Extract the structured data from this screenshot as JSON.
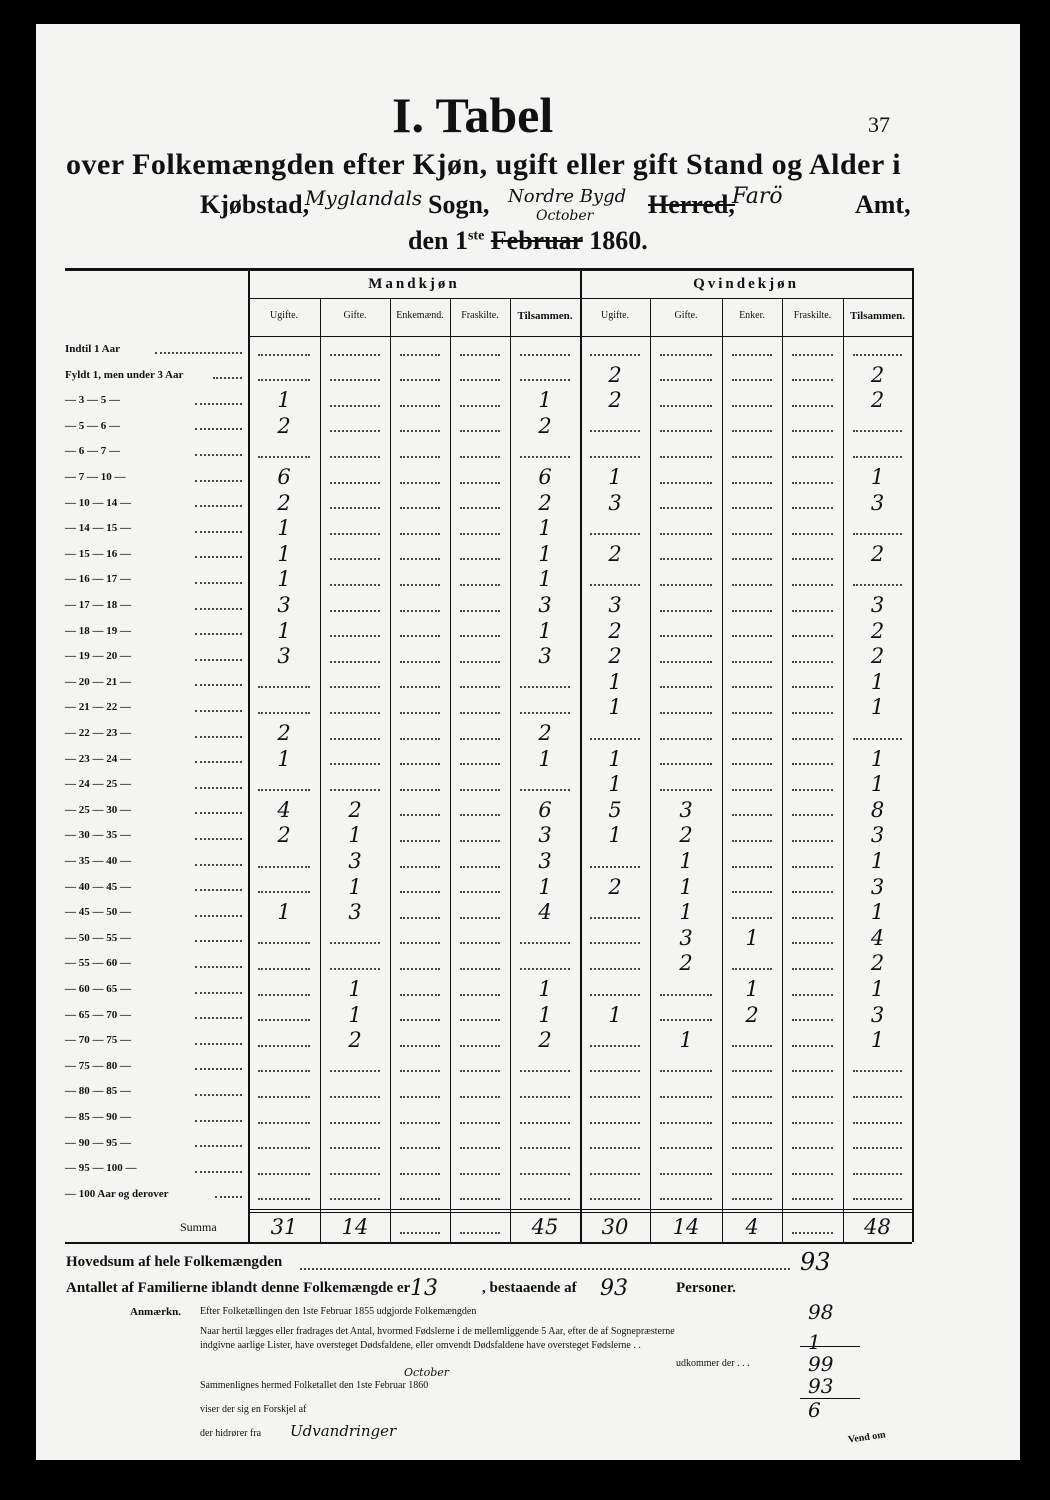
{
  "header": {
    "title": "I. Tabel",
    "page_number": "37",
    "subtitle": "over Folkemængden efter Kjøn, ugift eller gift Stand og Alder i",
    "place_line": {
      "kjobstad": "Kjøbstad,",
      "sogn_name": "Myglandals",
      "sogn": "Sogn,",
      "herred_name": "Nordre Bygd",
      "herred": "Herred,",
      "amt_name": "Farö",
      "amt": "Amt,"
    },
    "date": {
      "prefix": "den 1",
      "suffix": "ste",
      "month": "Februar",
      "year": "1860.",
      "correction": "October"
    }
  },
  "table": {
    "groups": [
      {
        "label": "Mandkjøn",
        "columns": [
          "Ugifte.",
          "Gifte.",
          "Enkemænd.",
          "Fraskilte.",
          "Tilsammen."
        ]
      },
      {
        "label": "Qvindekjøn",
        "columns": [
          "Ugifte.",
          "Gifte.",
          "Enker.",
          "Fraskilte.",
          "Tilsammen."
        ]
      }
    ],
    "rows": [
      {
        "label": "Indtil 1 Aar",
        "values": [
          null,
          null,
          null,
          null,
          null,
          null,
          null,
          null,
          null,
          null
        ]
      },
      {
        "label": "Fyldt 1, men under 3 Aar",
        "values": [
          null,
          null,
          null,
          null,
          null,
          2,
          null,
          null,
          null,
          2
        ]
      },
      {
        "label": "— 3 — 5 —",
        "values": [
          1,
          null,
          null,
          null,
          1,
          2,
          null,
          null,
          null,
          2
        ]
      },
      {
        "label": "— 5 — 6 —",
        "values": [
          2,
          null,
          null,
          null,
          2,
          null,
          null,
          null,
          null,
          null
        ]
      },
      {
        "label": "— 6 — 7 —",
        "values": [
          null,
          null,
          null,
          null,
          null,
          null,
          null,
          null,
          null,
          null
        ]
      },
      {
        "label": "— 7 — 10 —",
        "values": [
          6,
          null,
          null,
          null,
          6,
          1,
          null,
          null,
          null,
          1
        ]
      },
      {
        "label": "— 10 — 14 —",
        "values": [
          2,
          null,
          null,
          null,
          2,
          3,
          null,
          null,
          null,
          3
        ]
      },
      {
        "label": "— 14 — 15 —",
        "values": [
          1,
          null,
          null,
          null,
          1,
          null,
          null,
          null,
          null,
          null
        ]
      },
      {
        "label": "— 15 — 16 —",
        "values": [
          1,
          null,
          null,
          null,
          1,
          2,
          null,
          null,
          null,
          2
        ]
      },
      {
        "label": "— 16 — 17 —",
        "values": [
          1,
          null,
          null,
          null,
          1,
          null,
          null,
          null,
          null,
          null
        ]
      },
      {
        "label": "— 17 — 18 —",
        "values": [
          3,
          null,
          null,
          null,
          3,
          3,
          null,
          null,
          null,
          3
        ]
      },
      {
        "label": "— 18 — 19 —",
        "values": [
          1,
          null,
          null,
          null,
          1,
          2,
          null,
          null,
          null,
          2
        ]
      },
      {
        "label": "— 19 — 20 —",
        "values": [
          3,
          null,
          null,
          null,
          3,
          2,
          null,
          null,
          null,
          2
        ]
      },
      {
        "label": "— 20 — 21 —",
        "values": [
          null,
          null,
          null,
          null,
          null,
          1,
          null,
          null,
          null,
          1
        ]
      },
      {
        "label": "— 21 — 22 —",
        "values": [
          null,
          null,
          null,
          null,
          null,
          1,
          null,
          null,
          null,
          1
        ]
      },
      {
        "label": "— 22 — 23 —",
        "values": [
          2,
          null,
          null,
          null,
          2,
          null,
          null,
          null,
          null,
          null
        ]
      },
      {
        "label": "— 23 — 24 —",
        "values": [
          1,
          null,
          null,
          null,
          1,
          1,
          null,
          null,
          null,
          1
        ]
      },
      {
        "label": "— 24 — 25 —",
        "values": [
          null,
          null,
          null,
          null,
          null,
          1,
          null,
          null,
          null,
          1
        ]
      },
      {
        "label": "— 25 — 30 —",
        "values": [
          4,
          2,
          null,
          null,
          6,
          5,
          3,
          null,
          null,
          8
        ]
      },
      {
        "label": "— 30 — 35 —",
        "values": [
          2,
          1,
          null,
          null,
          3,
          1,
          2,
          null,
          null,
          3
        ]
      },
      {
        "label": "— 35 — 40 —",
        "values": [
          null,
          3,
          null,
          null,
          3,
          null,
          1,
          null,
          null,
          1
        ]
      },
      {
        "label": "— 40 — 45 —",
        "values": [
          null,
          1,
          null,
          null,
          1,
          2,
          1,
          null,
          null,
          3
        ]
      },
      {
        "label": "— 45 — 50 —",
        "values": [
          1,
          3,
          null,
          null,
          4,
          null,
          1,
          null,
          null,
          1
        ]
      },
      {
        "label": "— 50 — 55 —",
        "values": [
          null,
          null,
          null,
          null,
          null,
          null,
          3,
          1,
          null,
          4
        ]
      },
      {
        "label": "— 55 — 60 —",
        "values": [
          null,
          null,
          null,
          null,
          null,
          null,
          2,
          null,
          null,
          2
        ]
      },
      {
        "label": "— 60 — 65 —",
        "values": [
          null,
          1,
          null,
          null,
          1,
          null,
          null,
          1,
          null,
          1
        ]
      },
      {
        "label": "— 65 — 70 —",
        "values": [
          null,
          1,
          null,
          null,
          1,
          1,
          null,
          2,
          null,
          3
        ]
      },
      {
        "label": "— 70 — 75 —",
        "values": [
          null,
          2,
          null,
          null,
          2,
          null,
          1,
          null,
          null,
          1
        ]
      },
      {
        "label": "— 75 — 80 —",
        "values": [
          null,
          null,
          null,
          null,
          null,
          null,
          null,
          null,
          null,
          null
        ]
      },
      {
        "label": "— 80 — 85 —",
        "values": [
          null,
          null,
          null,
          null,
          null,
          null,
          null,
          null,
          null,
          null
        ]
      },
      {
        "label": "— 85 — 90 —",
        "values": [
          null,
          null,
          null,
          null,
          null,
          null,
          null,
          null,
          null,
          null
        ]
      },
      {
        "label": "— 90 — 95 —",
        "values": [
          null,
          null,
          null,
          null,
          null,
          null,
          null,
          null,
          null,
          null
        ]
      },
      {
        "label": "— 95 — 100 —",
        "values": [
          null,
          null,
          null,
          null,
          null,
          null,
          null,
          null,
          null,
          null
        ]
      },
      {
        "label": "— 100 Aar og derover",
        "values": [
          null,
          null,
          null,
          null,
          null,
          null,
          null,
          null,
          null,
          null
        ]
      }
    ],
    "total": {
      "label": "Summa",
      "values": [
        31,
        14,
        null,
        null,
        45,
        30,
        14,
        4,
        null,
        48
      ]
    }
  },
  "footer": {
    "hovedsum": {
      "label": "Hovedsum af hele Folkemængden",
      "value": 93
    },
    "familier": {
      "label": "Antallet af Familierne iblandt denne Folkemængde er",
      "families": 13,
      "middle": ", bestaaende af",
      "persons": 93,
      "end": "Personer."
    },
    "remarks": {
      "label": "Anmærkn.",
      "lines": [
        {
          "text": "Efter Folketællingen den 1ste Februar 1855 udgjorde Folkemængden",
          "value": 98
        },
        {
          "text": "Naar hertil lægges eller fradrages det Antal, hvormed Fødslerne i de mellemliggende 5 Aar, efter de af Sognepræsterne",
          "text2": "indgivne aarlige Lister, have oversteget Dødsfaldene, eller omvendt Dødsfaldene have oversteget Fødslerne . .",
          "value": 1
        },
        {
          "text": "udkommer der . . .",
          "value": 99
        },
        {
          "text": "Sammenlignes hermed Folketallet den 1ste Februar 1860",
          "value": 93
        },
        {
          "text": "viser der sig en Forskjel af",
          "value": 6
        }
      ],
      "correction": "October",
      "origin_label": "der hidrører fra",
      "origin_value": "Udvandringer"
    },
    "turn": "Vend om"
  }
}
